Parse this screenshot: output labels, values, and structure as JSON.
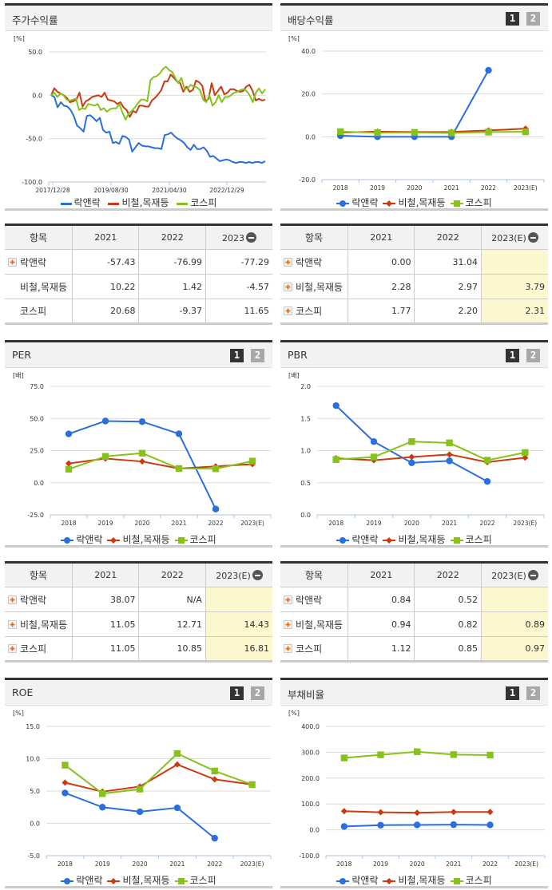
{
  "series_names": [
    "락앤락",
    "비철,목재등",
    "코스피"
  ],
  "colors": {
    "company": "#2a6fdb",
    "industry": "#cc3a10",
    "kospi": "#86c21a"
  },
  "panels": {
    "stock_return": {
      "title": "주가수익률",
      "unit": "[%]"
    },
    "dividend": {
      "title": "배당수익률",
      "unit": "[%]",
      "tabs": [
        "1",
        "2"
      ]
    },
    "per": {
      "title": "PER",
      "unit": "[배]",
      "tabs": [
        "1",
        "2"
      ]
    },
    "pbr": {
      "title": "PBR",
      "unit": "[배]",
      "tabs": [
        "1",
        "2"
      ]
    },
    "roe": {
      "title": "ROE",
      "unit": "[%]",
      "tabs": [
        "1",
        "2"
      ]
    },
    "debt": {
      "title": "부채비율",
      "unit": "[%]",
      "tabs": [
        "1",
        "2"
      ]
    }
  },
  "tables": {
    "stock_return": {
      "headers": [
        "항목",
        "2021",
        "2022",
        "2023"
      ],
      "rows": [
        {
          "name": "락앤락",
          "values": [
            "-57.43",
            "-76.99",
            "-77.29"
          ],
          "expandable": true
        },
        {
          "name": "비철,목재등",
          "values": [
            "10.22",
            "1.42",
            "-4.57"
          ],
          "expandable": false
        },
        {
          "name": "코스피",
          "values": [
            "20.68",
            "-9.37",
            "11.65"
          ],
          "expandable": false
        }
      ]
    },
    "dividend": {
      "headers": [
        "항목",
        "2021",
        "2022",
        "2023(E)"
      ],
      "rows": [
        {
          "name": "락앤락",
          "values": [
            "0.00",
            "31.04",
            ""
          ],
          "expandable": true
        },
        {
          "name": "비철,목재등",
          "values": [
            "2.28",
            "2.97",
            "3.79"
          ],
          "expandable": true
        },
        {
          "name": "코스피",
          "values": [
            "1.77",
            "2.20",
            "2.31"
          ],
          "expandable": true
        }
      ]
    },
    "per": {
      "headers": [
        "항목",
        "2021",
        "2022",
        "2023(E)"
      ],
      "rows": [
        {
          "name": "락앤락",
          "values": [
            "38.07",
            "N/A",
            ""
          ],
          "expandable": true
        },
        {
          "name": "비철,목재등",
          "values": [
            "11.05",
            "12.71",
            "14.43"
          ],
          "expandable": true
        },
        {
          "name": "코스피",
          "values": [
            "11.05",
            "10.85",
            "16.81"
          ],
          "expandable": true
        }
      ]
    },
    "pbr": {
      "headers": [
        "항목",
        "2021",
        "2022",
        "2023(E)"
      ],
      "rows": [
        {
          "name": "락앤락",
          "values": [
            "0.84",
            "0.52",
            ""
          ],
          "expandable": true
        },
        {
          "name": "비철,목재등",
          "values": [
            "0.94",
            "0.82",
            "0.89"
          ],
          "expandable": true
        },
        {
          "name": "코스피",
          "values": [
            "1.12",
            "0.85",
            "0.97"
          ],
          "expandable": true
        }
      ]
    }
  },
  "chart_data": [
    {
      "id": "stock_return",
      "type": "line",
      "title": "주가수익률",
      "ylabel": "[%]",
      "ylim": [
        -100,
        50
      ],
      "yticks": [
        "50.0",
        "0.0",
        "-50.0",
        "-100.0"
      ],
      "xticks": [
        "2017/12/28",
        "2019/08/30",
        "2021/04/30",
        "2022/12/29"
      ],
      "legend": [
        "락앤락",
        "비철,목재등",
        "코스피"
      ],
      "series": [
        {
          "name": "락앤락",
          "values": [
            0,
            -2,
            -14,
            -8,
            -12,
            -13,
            -17,
            -24,
            -35,
            -38,
            -42,
            -24,
            -23,
            -26,
            -30,
            -26,
            -40,
            -43,
            -42,
            -55,
            -54,
            -56,
            -47,
            -48,
            -51,
            -65,
            -60,
            -55,
            -58,
            -59,
            -59,
            -60,
            -61,
            -61,
            -62,
            -46,
            -45,
            -43,
            -47,
            -50,
            -52,
            -55,
            -60,
            -63,
            -57,
            -62,
            -62,
            -60,
            -64,
            -71,
            -70,
            -73,
            -76,
            -75,
            -74,
            -75,
            -77,
            -78,
            -77,
            -77,
            -78,
            -77,
            -78,
            -77,
            -77,
            -78,
            -76
          ]
        },
        {
          "name": "비철,목재등",
          "values": [
            0,
            8,
            4,
            2,
            0,
            -3,
            -8,
            -7,
            -5,
            3,
            -13,
            -7,
            -5,
            -2,
            -1,
            0,
            -2,
            3,
            -5,
            -6,
            -7,
            -10,
            -8,
            -14,
            -17,
            -25,
            -18,
            -20,
            -12,
            -12,
            -13,
            -13,
            -6,
            -3,
            1,
            6,
            16,
            16,
            24,
            20,
            16,
            14,
            4,
            10,
            4,
            6,
            17,
            15,
            11,
            -7,
            -4,
            14,
            0,
            5,
            10,
            1,
            3,
            7,
            7,
            5,
            4,
            5,
            10,
            12,
            5,
            -6,
            -4,
            -6,
            -5
          ]
        },
        {
          "name": "코스피",
          "values": [
            0,
            3,
            -2,
            2,
            0,
            -5,
            -6,
            -5,
            -4,
            -17,
            -15,
            -16,
            -10,
            -11,
            -12,
            -10,
            -17,
            -15,
            -19,
            -16,
            -15,
            -15,
            -10,
            -20,
            -28,
            -21,
            -18,
            -14,
            -9,
            -5,
            -5,
            -7,
            17,
            21,
            22,
            25,
            30,
            33,
            29,
            27,
            20,
            14,
            20,
            7,
            8,
            12,
            10,
            9,
            6,
            -5,
            -8,
            0,
            -12,
            -8,
            0,
            -8,
            -2,
            -2,
            0,
            3,
            4,
            6,
            7,
            5,
            0,
            -8,
            3,
            8,
            2,
            7
          ]
        }
      ]
    },
    {
      "id": "dividend",
      "type": "line",
      "title": "배당수익률",
      "ylabel": "[%]",
      "ylim": [
        -20,
        40
      ],
      "yticks": [
        "40.0",
        "20.0",
        "0.0",
        "-20.0"
      ],
      "categories": [
        "2018",
        "2019",
        "2020",
        "2021",
        "2022",
        "2023(E)"
      ],
      "legend": [
        "락앤락",
        "비철,목재등",
        "코스피"
      ],
      "series": [
        {
          "name": "락앤락",
          "values": [
            0.5,
            0.0,
            0.0,
            0.0,
            31.04,
            null
          ]
        },
        {
          "name": "비철,목재등",
          "values": [
            2.0,
            2.4,
            2.2,
            2.28,
            2.97,
            3.79
          ]
        },
        {
          "name": "코스피",
          "values": [
            2.4,
            1.9,
            2.0,
            1.77,
            2.2,
            2.31
          ]
        }
      ]
    },
    {
      "id": "per",
      "type": "line",
      "title": "PER",
      "ylabel": "[배]",
      "ylim": [
        -25,
        75
      ],
      "yticks": [
        "75.0",
        "50.0",
        "25.0",
        "0.0",
        "-25.0"
      ],
      "categories": [
        "2018",
        "2019",
        "2020",
        "2021",
        "2022",
        "2023(E)"
      ],
      "legend": [
        "락앤락",
        "비철,목재등",
        "코스피"
      ],
      "series": [
        {
          "name": "락앤락",
          "values": [
            38.0,
            48.0,
            47.5,
            38.07,
            -20.5,
            null
          ]
        },
        {
          "name": "비철,목재등",
          "values": [
            15.0,
            18.8,
            16.5,
            11.05,
            12.71,
            14.43
          ]
        },
        {
          "name": "코스피",
          "values": [
            10.5,
            20.5,
            23.0,
            11.05,
            10.85,
            16.81
          ]
        }
      ]
    },
    {
      "id": "pbr",
      "type": "line",
      "title": "PBR",
      "ylabel": "[배]",
      "ylim": [
        0,
        2
      ],
      "yticks": [
        "2.0",
        "1.5",
        "1.0",
        "0.5",
        "0.0"
      ],
      "categories": [
        "2018",
        "2019",
        "2020",
        "2021",
        "2022",
        "2023(E)"
      ],
      "legend": [
        "락앤락",
        "비철,목재등",
        "코스피"
      ],
      "series": [
        {
          "name": "락앤락",
          "values": [
            1.7,
            1.14,
            0.81,
            0.84,
            0.52,
            null
          ]
        },
        {
          "name": "비철,목재등",
          "values": [
            0.88,
            0.85,
            0.9,
            0.94,
            0.82,
            0.89
          ]
        },
        {
          "name": "코스피",
          "values": [
            0.86,
            0.9,
            1.14,
            1.12,
            0.85,
            0.97
          ]
        }
      ]
    },
    {
      "id": "roe",
      "type": "line",
      "title": "ROE",
      "ylabel": "[%]",
      "ylim": [
        -5,
        15
      ],
      "yticks": [
        "15.0",
        "10.0",
        "5.0",
        "0.0",
        "-5.0"
      ],
      "categories": [
        "2018",
        "2019",
        "2020",
        "2021",
        "2022",
        "2023(E)"
      ],
      "legend": [
        "락앤락",
        "비철,목재등",
        "코스피"
      ],
      "series": [
        {
          "name": "락앤락",
          "values": [
            4.7,
            2.5,
            1.8,
            2.4,
            -2.3,
            null
          ]
        },
        {
          "name": "비철,목재등",
          "values": [
            6.3,
            4.9,
            5.7,
            9.1,
            6.8,
            6.0
          ]
        },
        {
          "name": "코스피",
          "values": [
            9.0,
            4.6,
            5.3,
            10.8,
            8.1,
            6.0
          ]
        }
      ]
    },
    {
      "id": "debt",
      "type": "line",
      "title": "부채비율",
      "ylabel": "[%]",
      "ylim": [
        -100,
        400
      ],
      "yticks": [
        "400.0",
        "300.0",
        "200.0",
        "100.0",
        "0.0",
        "-100.0"
      ],
      "categories": [
        "2018",
        "2019",
        "2020",
        "2021",
        "2022",
        "2023(E)"
      ],
      "legend": [
        "락앤락",
        "비철,목재등",
        "코스피"
      ],
      "series": [
        {
          "name": "락앤락",
          "values": [
            13,
            18,
            19,
            20,
            19,
            null
          ]
        },
        {
          "name": "비철,목재등",
          "values": [
            72,
            68,
            66,
            69,
            69,
            null
          ]
        },
        {
          "name": "코스피",
          "values": [
            278,
            290,
            302,
            291,
            289,
            null
          ]
        }
      ]
    }
  ]
}
